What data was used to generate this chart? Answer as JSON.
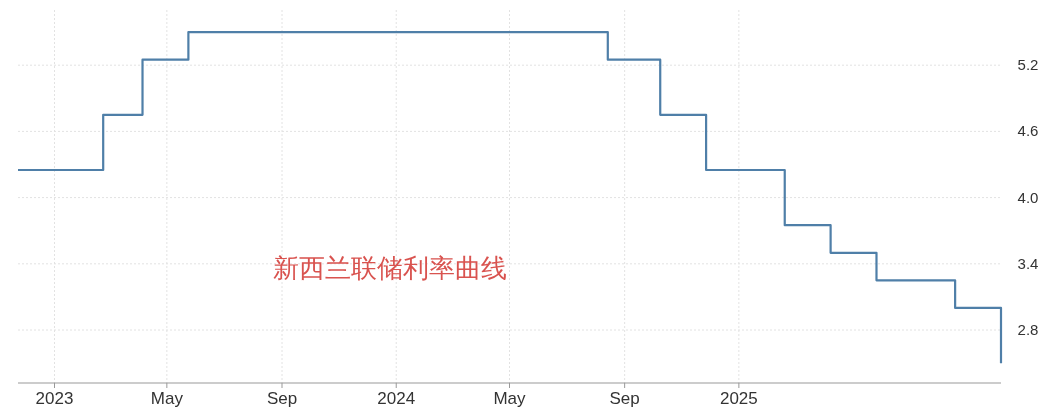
{
  "chart_data": {
    "type": "step",
    "title": "新西兰联储利率曲线",
    "x": [
      "2022-11-23",
      "2023-02-22",
      "2023-04-05",
      "2023-05-24",
      "2024-08-14",
      "2024-10-09",
      "2024-11-27",
      "2025-02-19",
      "2025-04-09",
      "2025-05-28",
      "2025-08-20",
      "2025-10-08"
    ],
    "series": [
      {
        "color": "#4f7fa8",
        "values": [
          4.25,
          4.75,
          5.25,
          5.5,
          5.25,
          4.75,
          4.25,
          3.75,
          3.5,
          3.25,
          3.0,
          2.5
        ]
      }
    ],
    "xlim": [
      "2022-11-23",
      "2025-10-08"
    ],
    "xticks": [
      {
        "value": "2023-01-01",
        "label": "2023"
      },
      {
        "value": "2023-05-01",
        "label": "May"
      },
      {
        "value": "2023-09-01",
        "label": "Sep"
      },
      {
        "value": "2024-01-01",
        "label": "2024"
      },
      {
        "value": "2024-05-01",
        "label": "May"
      },
      {
        "value": "2024-09-01",
        "label": "Sep"
      },
      {
        "value": "2025-01-01",
        "label": "2025"
      }
    ],
    "ylim": [
      2.32,
      5.7
    ],
    "yticks": [
      2.8,
      3.4,
      {
        "value": 4,
        "label": "4.0"
      },
      4.6,
      5.2
    ],
    "grid": true,
    "line_style": "solid"
  }
}
